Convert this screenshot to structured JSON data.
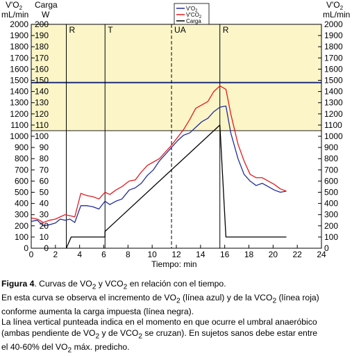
{
  "chart_data": {
    "type": "line",
    "left_axis_unit_label": "V'O",
    "left_axis_unit_sub": "2",
    "left_axis_unit_line2": "mL/min",
    "load_axis_label": "Carga",
    "load_axis_unit": "W",
    "right_axis_unit_label": "V'O",
    "right_axis_unit_sub": "2",
    "right_axis_unit_line2": "mL/min",
    "xlabel": "Tiempo: min",
    "xlim": [
      0,
      24
    ],
    "ylim": [
      0,
      2000
    ],
    "x_ticks": [
      0,
      2,
      4,
      6,
      8,
      10,
      12,
      14,
      16,
      18,
      20,
      22,
      24
    ],
    "y_ticks": [
      0,
      100,
      200,
      300,
      400,
      500,
      600,
      700,
      800,
      900,
      1000,
      1100,
      1200,
      1300,
      1400,
      1500,
      1600,
      1700,
      1800,
      1900,
      2000
    ],
    "load_ticks": [
      0,
      10,
      20,
      30,
      40,
      50,
      60,
      70,
      80,
      90,
      100,
      110,
      120,
      130,
      140,
      150,
      160,
      170,
      180,
      190,
      200
    ],
    "grid": false,
    "shaded_band": {
      "from": 1050,
      "to": 2000,
      "color": "#FBF5C8"
    },
    "horizontal_line": {
      "y": 1480,
      "color": "#1F2C7A"
    },
    "vertical_markers": [
      {
        "x": 2.9,
        "label": "R",
        "style": "solid"
      },
      {
        "x": 6.1,
        "label": "T",
        "style": "solid"
      },
      {
        "x": 11.6,
        "label": "UA",
        "style": "dashed"
      },
      {
        "x": 15.6,
        "label": "R",
        "style": "solid"
      }
    ],
    "legend": {
      "placement": "top-center",
      "entries": [
        {
          "name": "V'O",
          "sub": "2",
          "color": "#1F2C9C"
        },
        {
          "name": "V'CO",
          "sub": "2",
          "color": "#E31A1C"
        },
        {
          "name": "Carga",
          "sub": "",
          "color": "#000000"
        }
      ]
    },
    "series": [
      {
        "key": "vo2",
        "color": "#1F2C9C",
        "points": [
          [
            0,
            240
          ],
          [
            0.5,
            250
          ],
          [
            1,
            200
          ],
          [
            1.5,
            210
          ],
          [
            2,
            225
          ],
          [
            2.4,
            260
          ],
          [
            2.8,
            250
          ],
          [
            3.2,
            260
          ],
          [
            3.6,
            230
          ],
          [
            4.1,
            380
          ],
          [
            4.6,
            380
          ],
          [
            5.1,
            370
          ],
          [
            5.6,
            350
          ],
          [
            6.1,
            420
          ],
          [
            6.5,
            390
          ],
          [
            7,
            420
          ],
          [
            7.5,
            440
          ],
          [
            8.1,
            520
          ],
          [
            8.6,
            540
          ],
          [
            9.1,
            580
          ],
          [
            9.6,
            650
          ],
          [
            10.1,
            700
          ],
          [
            10.6,
            780
          ],
          [
            11.1,
            840
          ],
          [
            11.6,
            900
          ],
          [
            12.1,
            960
          ],
          [
            12.6,
            1010
          ],
          [
            13.1,
            1030
          ],
          [
            13.6,
            1080
          ],
          [
            14.1,
            1130
          ],
          [
            14.6,
            1160
          ],
          [
            15.1,
            1220
          ],
          [
            15.6,
            1260
          ],
          [
            16.1,
            1270
          ],
          [
            16.5,
            1030
          ],
          [
            17.1,
            800
          ],
          [
            17.6,
            660
          ],
          [
            18.1,
            600
          ],
          [
            18.6,
            560
          ],
          [
            19.1,
            580
          ],
          [
            19.6,
            550
          ],
          [
            20.1,
            520
          ],
          [
            20.6,
            500
          ],
          [
            21.1,
            510
          ]
        ]
      },
      {
        "key": "vco2",
        "color": "#E31A1C",
        "points": [
          [
            0,
            270
          ],
          [
            0.5,
            260
          ],
          [
            1,
            230
          ],
          [
            1.5,
            250
          ],
          [
            2,
            260
          ],
          [
            2.4,
            280
          ],
          [
            2.8,
            300
          ],
          [
            3.2,
            290
          ],
          [
            3.6,
            280
          ],
          [
            4.1,
            490
          ],
          [
            4.6,
            470
          ],
          [
            5.1,
            460
          ],
          [
            5.6,
            440
          ],
          [
            6.1,
            500
          ],
          [
            6.5,
            480
          ],
          [
            7,
            520
          ],
          [
            7.5,
            550
          ],
          [
            8.1,
            600
          ],
          [
            8.6,
            610
          ],
          [
            9.1,
            680
          ],
          [
            9.6,
            740
          ],
          [
            10.1,
            770
          ],
          [
            10.6,
            800
          ],
          [
            11.1,
            860
          ],
          [
            11.6,
            920
          ],
          [
            12.1,
            990
          ],
          [
            12.6,
            1060
          ],
          [
            13.1,
            1150
          ],
          [
            13.6,
            1250
          ],
          [
            14.1,
            1280
          ],
          [
            14.6,
            1310
          ],
          [
            15.1,
            1400
          ],
          [
            15.6,
            1450
          ],
          [
            16.1,
            1420
          ],
          [
            16.5,
            1200
          ],
          [
            17.1,
            930
          ],
          [
            17.6,
            780
          ],
          [
            18.1,
            660
          ],
          [
            18.6,
            630
          ],
          [
            19.1,
            630
          ],
          [
            19.6,
            600
          ],
          [
            20.1,
            570
          ],
          [
            20.6,
            530
          ],
          [
            21.1,
            510
          ]
        ]
      },
      {
        "key": "carga",
        "color": "#000000",
        "axis": "load",
        "points": [
          [
            2.9,
            0
          ],
          [
            3.3,
            10
          ],
          [
            6.1,
            10
          ],
          [
            6.1,
            15
          ],
          [
            6.6,
            20
          ],
          [
            15.6,
            110
          ],
          [
            16.1,
            10
          ],
          [
            21.1,
            10
          ]
        ]
      }
    ]
  },
  "caption": {
    "line1_bold": "Figura 4",
    "line1_a": ". Curvas de VO",
    "line1_sub1": "2",
    "line1_b": " y VCO",
    "line1_sub2": "2",
    "line1_c": " en relación con el tiempo.",
    "line2_a": "En esta curva se observa el incremento de VO",
    "line2_sub1": "2",
    "line2_b": " (línea azul) y de la VCO",
    "line2_sub2": "2",
    "line2_c": " (línea roja)",
    "line3": "conforme aumenta la carga impuesta (línea negra).",
    "line4": "La línea vertical punteada indica en el momento en que ocurre el umbral anaeróbico",
    "line5_a": "(ambas pendiente de VO",
    "line5_sub1": "2",
    "line5_b": " y de VCO",
    "line5_sub2": "2",
    "line5_c": " se cruzan). En sujetos sanos debe estar entre",
    "line6_a": "el 40-60% del VO",
    "line6_sub1": "2",
    "line6_b": " máx. predicho."
  }
}
